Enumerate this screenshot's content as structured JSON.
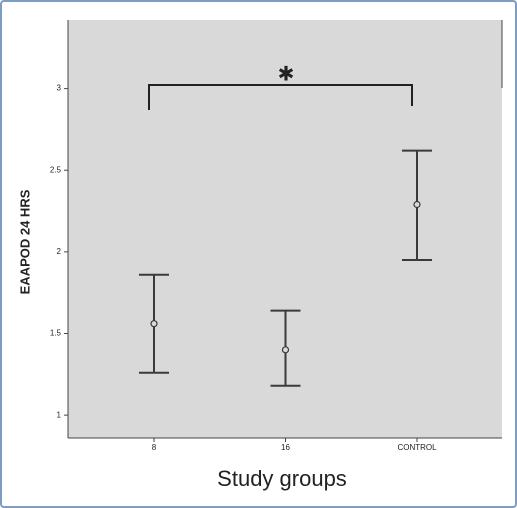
{
  "chart_data": {
    "type": "errorbar",
    "x_label": "Study groups",
    "y_label": "EAAPOD  24  HRS",
    "categories": [
      "8",
      "16",
      "CONTROL"
    ],
    "values": [
      1.56,
      1.4,
      2.29
    ],
    "lower": [
      1.26,
      1.18,
      1.95
    ],
    "upper": [
      1.86,
      1.64,
      2.62
    ],
    "color": "#3a3a3a",
    "ylim": [
      0.86,
      3.42
    ],
    "yticks": [
      1,
      1.5,
      2,
      2.5,
      3
    ],
    "annotation": "✱"
  }
}
